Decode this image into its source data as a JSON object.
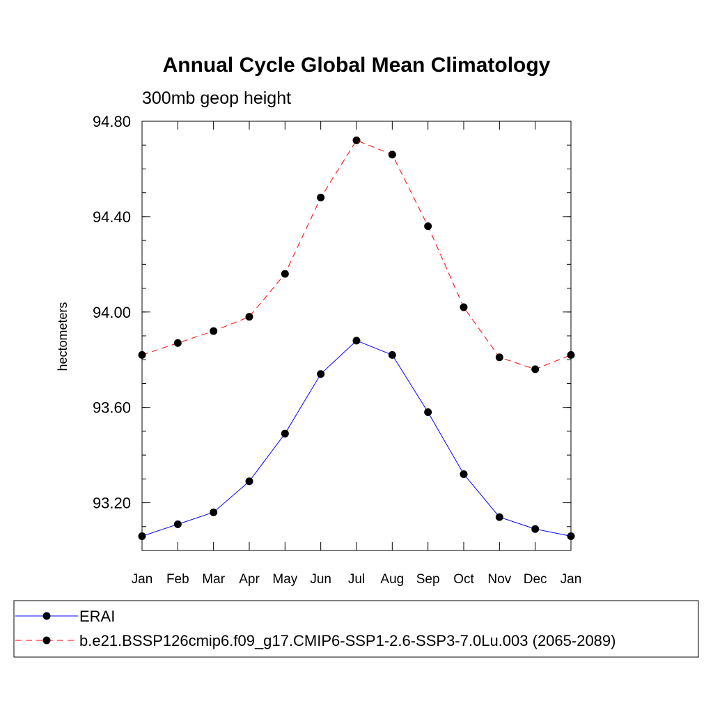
{
  "chart_data": {
    "type": "line",
    "title": "Annual Cycle Global Mean Climatology",
    "subtitle": "300mb geop height",
    "ylabel": "hectometers",
    "xlabel": "",
    "categories": [
      "Jan",
      "Feb",
      "Mar",
      "Apr",
      "May",
      "Jun",
      "Jul",
      "Aug",
      "Sep",
      "Oct",
      "Nov",
      "Dec",
      "Jan"
    ],
    "ylim": [
      93.0,
      94.8
    ],
    "yticks": [
      "94.80",
      "94.40",
      "94.00",
      "93.60",
      "93.20"
    ],
    "ytick_values": [
      94.8,
      94.4,
      94.0,
      93.6,
      93.2
    ],
    "grid": false,
    "legend_position": "bottom",
    "series": [
      {
        "name": "ERAI",
        "color": "#0000ff",
        "dash": "solid",
        "marker": "filled-circle",
        "values": [
          93.06,
          93.11,
          93.16,
          93.29,
          93.49,
          93.74,
          93.88,
          93.82,
          93.58,
          93.32,
          93.14,
          93.09,
          93.06
        ]
      },
      {
        "name": "b.e21.BSSP126cmip6.f09_g17.CMIP6-SSP1-2.6-SSP3-7.0Lu.003 (2065-2089)",
        "color": "#ff0000",
        "dash": "dashed",
        "marker": "filled-circle",
        "values": [
          93.82,
          93.87,
          93.92,
          93.98,
          94.16,
          94.48,
          94.72,
          94.66,
          94.36,
          94.02,
          93.81,
          93.76,
          93.82
        ]
      }
    ]
  }
}
